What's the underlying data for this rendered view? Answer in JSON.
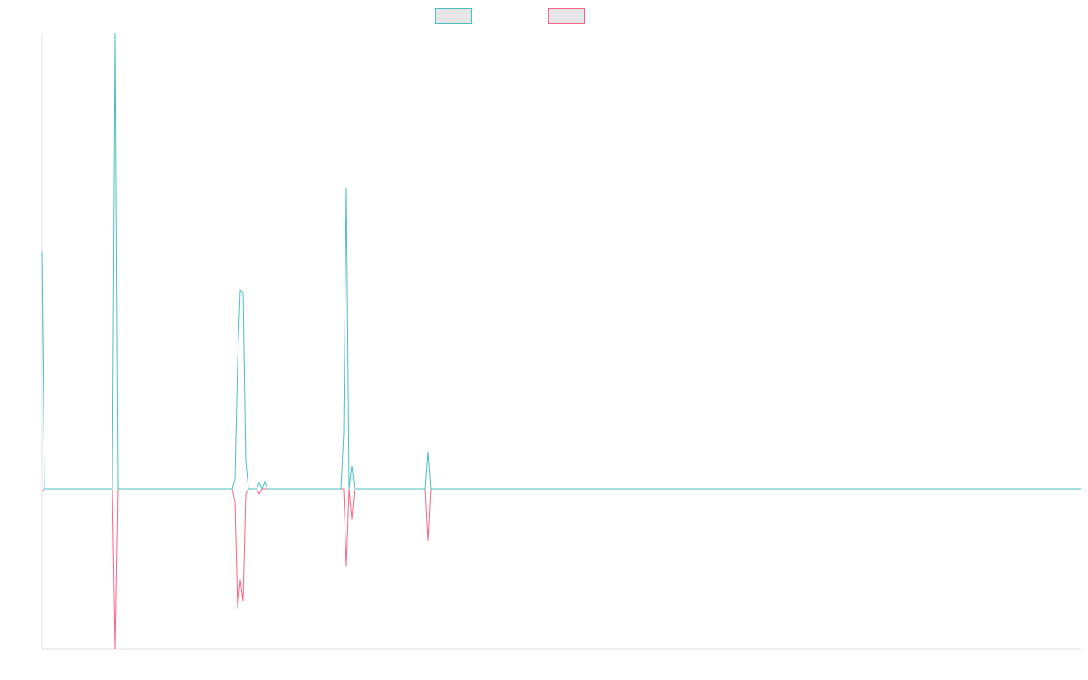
{
  "chart_data": {
    "type": "line",
    "xlim": [
      0,
      382
    ],
    "ylim": [
      -35.2,
      100
    ],
    "legend": "top",
    "series": [
      {
        "color": "#ff6384",
        "x": [
          0,
          1,
          26,
          27,
          28,
          70,
          71,
          72,
          73,
          74,
          75,
          76,
          79,
          80,
          81,
          111,
          112,
          113,
          114,
          115,
          141,
          142,
          143,
          382
        ],
        "values": [
          -0.6,
          0,
          0,
          -35.2,
          0,
          0,
          -3,
          -26.4,
          -20,
          -24.7,
          -1.2,
          0,
          0,
          -1.2,
          0,
          0,
          -17,
          0,
          -6.6,
          0,
          0,
          -11.5,
          0,
          0
        ]
      },
      {
        "color": "#4bc0c0",
        "x": [
          0,
          1,
          26,
          27,
          28,
          70,
          71,
          72,
          73,
          74,
          75,
          76,
          79,
          80,
          81,
          82,
          83,
          110,
          111,
          112,
          113,
          114,
          115,
          141,
          142,
          143,
          382
        ],
        "values": [
          52,
          0,
          0,
          100,
          0,
          0,
          2,
          28,
          43.5,
          43,
          6,
          0,
          0,
          1.2,
          0,
          1.4,
          0,
          0,
          12,
          66,
          0,
          5,
          0,
          0,
          8,
          0,
          0
        ]
      }
    ]
  }
}
